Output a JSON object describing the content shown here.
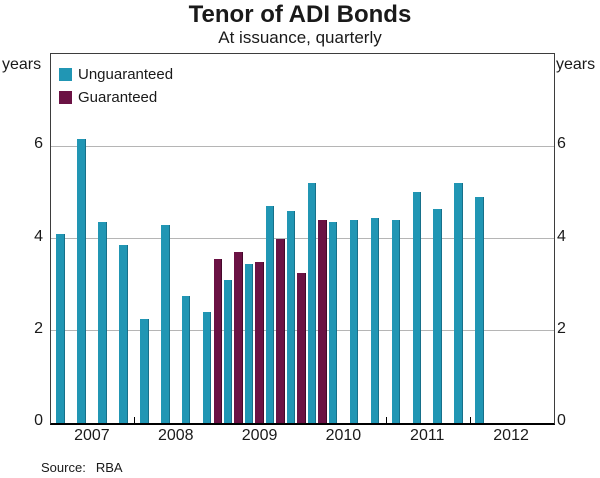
{
  "header": {
    "title": "Tenor of ADI Bonds",
    "subtitle": "At issuance, quarterly"
  },
  "axes": {
    "unit_left": "years",
    "unit_right": "years",
    "yticks": [
      0,
      2,
      4,
      6
    ],
    "ymax": 8,
    "xlabels": [
      "2007",
      "2008",
      "2009",
      "2010",
      "2011",
      "2012"
    ]
  },
  "legend": [
    {
      "label": "Unguaranteed",
      "color": "#2196B4"
    },
    {
      "label": "Guaranteed",
      "color": "#6B1244"
    }
  ],
  "footer": {
    "source_label": "Source:",
    "source_value": "RBA"
  },
  "chart_data": {
    "type": "bar",
    "title": "Tenor of ADI Bonds",
    "subtitle": "At issuance, quarterly",
    "xlabel": "",
    "ylabel": "years",
    "ylim": [
      0,
      8
    ],
    "yticks": [
      0,
      2,
      4,
      6
    ],
    "grid": "horizontal",
    "legend_position": "top-left-inside",
    "x_domain_years": [
      2007,
      2012
    ],
    "series": [
      {
        "name": "Unguaranteed",
        "color": "#2196B4",
        "edge_color": "#17708A",
        "points": [
          {
            "quarter": "2007Q1",
            "value": 4.1
          },
          {
            "quarter": "2007Q2",
            "value": 6.15
          },
          {
            "quarter": "2007Q3",
            "value": 4.35
          },
          {
            "quarter": "2007Q4",
            "value": 3.85
          },
          {
            "quarter": "2008Q1",
            "value": 2.25
          },
          {
            "quarter": "2008Q2",
            "value": 4.3
          },
          {
            "quarter": "2008Q3",
            "value": 2.75
          },
          {
            "quarter": "2008Q4",
            "value": 2.4
          },
          {
            "quarter": "2009Q1",
            "value": 3.1
          },
          {
            "quarter": "2009Q2",
            "value": 3.45
          },
          {
            "quarter": "2009Q3",
            "value": 4.7
          },
          {
            "quarter": "2009Q4",
            "value": 4.6
          },
          {
            "quarter": "2010Q1",
            "value": 5.2
          },
          {
            "quarter": "2010Q2",
            "value": 4.35
          },
          {
            "quarter": "2010Q3",
            "value": 4.4
          },
          {
            "quarter": "2010Q4",
            "value": 4.45
          },
          {
            "quarter": "2011Q1",
            "value": 4.4
          },
          {
            "quarter": "2011Q2",
            "value": 5.0
          },
          {
            "quarter": "2011Q3",
            "value": 4.65
          },
          {
            "quarter": "2011Q4",
            "value": 5.2
          },
          {
            "quarter": "2012Q1",
            "value": 4.9
          }
        ]
      },
      {
        "name": "Guaranteed",
        "color": "#6B1244",
        "edge_color": "#45082B",
        "points": [
          {
            "quarter": "2008Q4",
            "value": 3.55
          },
          {
            "quarter": "2009Q1",
            "value": 3.7
          },
          {
            "quarter": "2009Q2",
            "value": 3.5
          },
          {
            "quarter": "2009Q3",
            "value": 4.0
          },
          {
            "quarter": "2009Q4",
            "value": 3.25
          },
          {
            "quarter": "2010Q1",
            "value": 4.4
          }
        ]
      }
    ]
  }
}
